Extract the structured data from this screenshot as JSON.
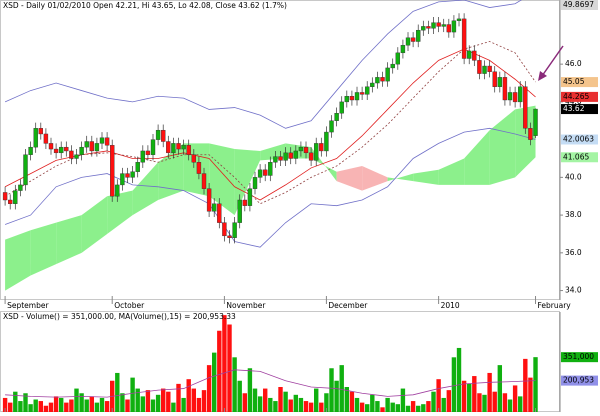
{
  "chart_data": [
    {
      "type": "candlestick",
      "title": "XSD - Daily 01/02/2010 Open 42.21, Hi 43.65, Lo 42.08, Close 43.62 (1.7%)",
      "up_color": "#10b010",
      "down_color": "#ff1010",
      "xlim": [
        -1,
        108.8
      ],
      "ylim": [
        33.5,
        49.4
      ],
      "xticks": [
        {
          "value": 0,
          "label": "September"
        },
        {
          "value": 21,
          "label": "October"
        },
        {
          "value": 43,
          "label": "November"
        },
        {
          "value": 63,
          "label": "December"
        },
        {
          "value": 85,
          "label": "2010"
        },
        {
          "value": 104,
          "label": "February"
        }
      ],
      "yticks": [
        {
          "value": 34,
          "label": "34.0"
        },
        {
          "value": 36,
          "label": "36.0"
        },
        {
          "value": 38,
          "label": "38.0"
        },
        {
          "value": 40,
          "label": "40.0"
        },
        {
          "value": 44,
          "label": "44.0"
        },
        {
          "value": 46,
          "label": "46.0"
        }
      ],
      "open": [
        39.2,
        38.8,
        38.6,
        39.3,
        39.6,
        41.2,
        41.6,
        42.6,
        42.3,
        41.8,
        41.5,
        41.3,
        41.6,
        41.4,
        41.0,
        41.2,
        41.6,
        41.9,
        41.4,
        41.8,
        42.1,
        41.7,
        39.0,
        39.6,
        40.2,
        40.0,
        40.3,
        40.8,
        41.4,
        41.2,
        42.0,
        42.5,
        41.9,
        41.3,
        41.8,
        41.5,
        41.7,
        41.2,
        40.8,
        40.2,
        39.4,
        38.2,
        38.6,
        37.6,
        36.9,
        36.8,
        37.6,
        38.8,
        38.5,
        39.4,
        40.0,
        40.4,
        40.1,
        40.8,
        41.1,
        40.9,
        41.3,
        41.0,
        41.4,
        41.6,
        41.3,
        40.9,
        41.8,
        41.4,
        42.4,
        43.0,
        43.4,
        44.0,
        44.3,
        44.1,
        44.5,
        44.4,
        44.8,
        45.0,
        45.3,
        45.1,
        45.8,
        46.0,
        46.6,
        47.0,
        47.4,
        47.2,
        47.8,
        48.0,
        47.9,
        48.2,
        48.0,
        48.1,
        47.7,
        48.3,
        48.4,
        46.3,
        46.7,
        46.2,
        45.5,
        45.9,
        45.6,
        44.8,
        45.3,
        44.1,
        44.5,
        44.0,
        44.8,
        42.6,
        42.21
      ],
      "high": [
        39.5,
        39.1,
        39.6,
        39.9,
        41.5,
        41.9,
        42.9,
        42.9,
        42.6,
        42.1,
        41.8,
        41.9,
        41.9,
        41.7,
        41.5,
        41.9,
        42.2,
        42.2,
        42.1,
        42.4,
        42.4,
        42.0,
        39.9,
        40.5,
        40.5,
        40.6,
        41.1,
        41.7,
        41.7,
        42.3,
        42.8,
        42.8,
        42.2,
        42.1,
        42.1,
        42.0,
        42.0,
        41.5,
        41.1,
        40.5,
        39.7,
        38.9,
        38.9,
        37.9,
        37.2,
        37.9,
        39.1,
        39.1,
        39.7,
        40.3,
        40.7,
        40.7,
        41.1,
        41.4,
        41.4,
        41.6,
        41.6,
        41.7,
        41.9,
        41.9,
        41.6,
        42.1,
        42.1,
        42.7,
        43.3,
        43.7,
        44.3,
        44.6,
        44.6,
        44.8,
        44.8,
        45.1,
        45.3,
        45.6,
        45.6,
        46.1,
        46.3,
        46.9,
        47.3,
        47.7,
        47.7,
        48.1,
        48.3,
        48.3,
        48.5,
        48.5,
        48.4,
        48.4,
        48.6,
        48.7,
        48.7,
        47.0,
        47.0,
        46.5,
        46.2,
        46.2,
        45.9,
        45.6,
        45.6,
        44.8,
        44.8,
        45.1,
        45.1,
        42.9,
        43.65
      ],
      "low": [
        38.5,
        38.3,
        38.3,
        39.0,
        39.3,
        40.9,
        41.3,
        42.0,
        41.5,
        41.2,
        41.0,
        41.0,
        41.1,
        40.7,
        40.7,
        40.9,
        41.3,
        41.1,
        41.1,
        41.5,
        41.4,
        38.7,
        38.7,
        39.3,
        39.7,
        39.7,
        40.0,
        40.5,
        40.9,
        40.9,
        41.7,
        41.6,
        41.0,
        41.0,
        41.2,
        41.2,
        40.9,
        40.5,
        39.9,
        39.1,
        37.9,
        37.9,
        37.3,
        36.6,
        36.5,
        36.5,
        37.3,
        38.2,
        38.2,
        39.1,
        39.7,
        39.8,
        39.8,
        40.5,
        40.6,
        40.6,
        40.7,
        40.7,
        41.1,
        41.0,
        40.6,
        40.6,
        41.1,
        41.1,
        42.1,
        42.7,
        43.1,
        43.7,
        43.8,
        43.8,
        44.1,
        44.1,
        44.5,
        44.7,
        44.8,
        44.8,
        45.5,
        45.7,
        46.3,
        46.7,
        46.9,
        46.9,
        47.5,
        47.6,
        47.6,
        47.7,
        47.7,
        47.4,
        47.4,
        48.0,
        46.0,
        46.0,
        45.9,
        45.2,
        45.2,
        45.3,
        44.5,
        44.5,
        43.8,
        43.8,
        43.7,
        43.7,
        42.3,
        41.7,
        42.08
      ],
      "close": [
        38.8,
        38.6,
        39.3,
        39.6,
        41.2,
        41.6,
        42.6,
        42.3,
        41.8,
        41.5,
        41.3,
        41.6,
        41.4,
        41.0,
        41.2,
        41.6,
        41.9,
        41.4,
        41.8,
        42.1,
        41.7,
        39.0,
        39.6,
        40.2,
        40.0,
        40.3,
        40.8,
        41.4,
        41.2,
        42.0,
        42.5,
        41.9,
        41.3,
        41.8,
        41.5,
        41.7,
        41.2,
        40.8,
        40.2,
        39.4,
        38.2,
        38.6,
        37.6,
        36.9,
        36.8,
        37.6,
        38.8,
        38.5,
        39.4,
        40.0,
        40.4,
        40.1,
        40.8,
        41.1,
        40.9,
        41.3,
        41.0,
        41.4,
        41.6,
        41.3,
        40.9,
        41.8,
        41.4,
        42.4,
        43.0,
        43.4,
        44.0,
        44.3,
        44.1,
        44.5,
        44.4,
        44.8,
        45.0,
        45.3,
        45.1,
        45.8,
        46.0,
        46.6,
        47.0,
        47.4,
        47.2,
        47.8,
        48.0,
        47.9,
        48.2,
        48.0,
        48.1,
        47.7,
        48.3,
        48.4,
        46.3,
        46.7,
        46.2,
        45.5,
        45.9,
        45.6,
        44.8,
        45.3,
        44.1,
        44.5,
        44.0,
        44.8,
        42.6,
        42.0,
        43.62
      ],
      "cloud": {
        "x": [
          0,
          5,
          10,
          15,
          20,
          25,
          30,
          35,
          40,
          45,
          50,
          55,
          60,
          65,
          70,
          75,
          80,
          85,
          90,
          95,
          100,
          104
        ],
        "span_a": [
          36.7,
          37.2,
          37.6,
          38.0,
          39.0,
          39.3,
          40.8,
          41.8,
          41.8,
          41.5,
          41.4,
          41.8,
          41.6,
          39.8,
          39.3,
          39.8,
          40.2,
          40.4,
          41.0,
          42.5,
          43.6,
          43.8
        ],
        "span_b": [
          34.0,
          34.8,
          35.4,
          36.0,
          37.0,
          38.0,
          38.8,
          39.3,
          39.0,
          38.0,
          40.9,
          41.0,
          41.0,
          40.3,
          40.6,
          40.0,
          39.8,
          39.6,
          39.6,
          39.6,
          40.0,
          41.065
        ],
        "up_color": "#8cf08c",
        "down_color": "#f8b4b4"
      },
      "overlays": [
        {
          "color": "#7070c8",
          "x": [
            0,
            5,
            10,
            15,
            20,
            25,
            30,
            35,
            40,
            45,
            50,
            55,
            60,
            65,
            70,
            75,
            80,
            85,
            90,
            95,
            100,
            104
          ],
          "values": [
            44.0,
            44.6,
            45.0,
            44.6,
            44.2,
            44.0,
            44.3,
            44.2,
            43.6,
            43.7,
            43.3,
            42.6,
            43.0,
            44.6,
            46.2,
            47.6,
            48.8,
            49.3,
            49.4,
            49.0,
            49.2,
            49.8697
          ]
        },
        {
          "color": "#7070c8",
          "x": [
            0,
            5,
            10,
            15,
            20,
            25,
            30,
            35,
            40,
            45,
            50,
            55,
            60,
            65,
            70,
            75,
            80,
            85,
            90,
            95,
            100,
            104
          ],
          "values": [
            37.5,
            38.0,
            39.5,
            40.0,
            40.2,
            39.6,
            39.5,
            39.3,
            38.6,
            36.6,
            36.3,
            37.6,
            38.6,
            38.5,
            38.8,
            39.5,
            41.0,
            41.8,
            42.4,
            42.6,
            42.3,
            42.0063
          ]
        },
        {
          "color": "#e02020",
          "x": [
            0,
            5,
            10,
            15,
            20,
            25,
            30,
            35,
            40,
            45,
            50,
            55,
            60,
            65,
            70,
            75,
            80,
            85,
            90,
            95,
            100,
            104
          ],
          "values": [
            39.5,
            40.2,
            40.9,
            41.2,
            41.4,
            41.0,
            41.0,
            41.3,
            41.0,
            39.5,
            38.8,
            39.6,
            40.5,
            41.0,
            42.2,
            43.6,
            45.0,
            46.2,
            46.8,
            46.2,
            45.2,
            44.265
          ]
        },
        {
          "color": "#904040",
          "dash": true,
          "x": [
            0,
            5,
            10,
            15,
            20,
            25,
            30,
            35,
            40,
            45,
            50,
            55,
            60,
            65,
            70,
            75,
            80,
            85,
            90,
            95,
            100,
            104
          ],
          "values": [
            39.0,
            39.8,
            40.6,
            41.2,
            41.3,
            41.1,
            40.8,
            41.2,
            41.2,
            40.0,
            38.6,
            39.2,
            40.0,
            40.6,
            41.6,
            42.8,
            44.2,
            45.6,
            46.8,
            47.2,
            46.6,
            45.05
          ]
        }
      ],
      "price_tags": [
        {
          "value": 49.8697,
          "color": "#d8d8d8",
          "text_color": "#000000"
        },
        {
          "value": 45.05,
          "color": "#f4c48c",
          "text_color": "#000000"
        },
        {
          "value": 44.265,
          "color": "#e83030",
          "text_color": "#000000"
        },
        {
          "value": 43.62,
          "color": "#000000",
          "text_color": "#ffffff"
        },
        {
          "value": 42.0063,
          "color": "#c4dcf4",
          "text_color": "#000000"
        },
        {
          "value": 41.065,
          "color": "#a4f4a4",
          "text_color": "#000000"
        }
      ]
    },
    {
      "type": "volume",
      "title": "XSD - Volume() = 351,000.00, MA(Volume(),15) = 200,953.33",
      "ylim": [
        0,
        640000
      ],
      "values": [
        90000,
        60000,
        130000,
        70000,
        120000,
        50000,
        80000,
        70000,
        40000,
        60000,
        100000,
        90000,
        60000,
        80000,
        150000,
        120000,
        80000,
        100000,
        60000,
        90000,
        70000,
        200000,
        250000,
        120000,
        80000,
        220000,
        150000,
        100000,
        140000,
        80000,
        110000,
        150000,
        130000,
        60000,
        180000,
        90000,
        210000,
        150000,
        90000,
        140000,
        300000,
        380000,
        520000,
        620000,
        560000,
        350000,
        200000,
        120000,
        280000,
        150000,
        100000,
        150000,
        90000,
        70000,
        160000,
        130000,
        80000,
        110000,
        90000,
        70000,
        60000,
        150000,
        60000,
        120000,
        280000,
        200000,
        300000,
        160000,
        130000,
        90000,
        60000,
        50000,
        110000,
        70000,
        30000,
        90000,
        60000,
        50000,
        150000,
        40000,
        70000,
        40000,
        50000,
        70000,
        130000,
        210000,
        90000,
        140000,
        350000,
        410000,
        200000,
        180000,
        230000,
        120000,
        110000,
        250000,
        130000,
        300000,
        120000,
        80000,
        170000,
        100000,
        340000,
        220000,
        351000
      ],
      "ma": {
        "color": "#a040a0",
        "x": [
          0,
          5,
          10,
          15,
          20,
          25,
          30,
          35,
          40,
          45,
          50,
          55,
          60,
          65,
          70,
          75,
          80,
          85,
          90,
          95,
          100,
          104
        ],
        "values": [
          110000,
          100000,
          95000,
          100000,
          95000,
          120000,
          140000,
          150000,
          220000,
          270000,
          260000,
          200000,
          160000,
          150000,
          120000,
          100000,
          110000,
          150000,
          180000,
          190000,
          195000,
          200953
        ]
      },
      "tags": [
        {
          "value": 351000,
          "label": "351,000",
          "color": "#10b010"
        },
        {
          "value": 200953,
          "label": "200,953",
          "color": "#9090e8"
        }
      ]
    }
  ]
}
